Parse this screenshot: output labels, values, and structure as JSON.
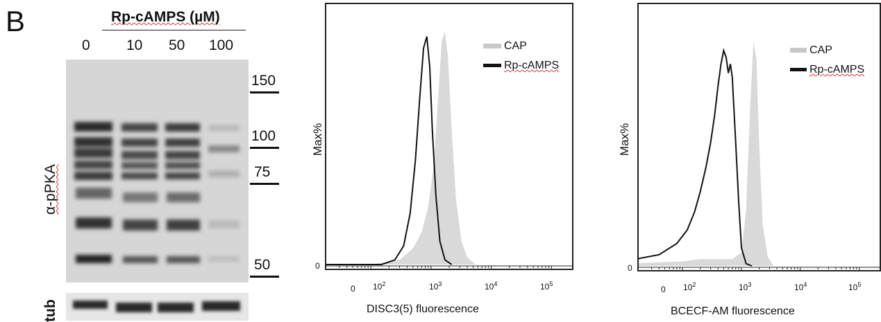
{
  "figure": {
    "panel_letter": "B",
    "treatment_title": "Rp-cAMPS (µM)",
    "concentrations": [
      "0",
      "10",
      "50",
      "100"
    ],
    "blot_label": "α-pPKA",
    "loading_label": "tub",
    "mw_markers": [
      "150",
      "100",
      "75",
      "50"
    ]
  },
  "chart_data": [
    {
      "type": "area",
      "title": "",
      "xlabel": "DISC3(5) fluorescence",
      "ylabel": "Max%",
      "x_scale": "log",
      "y_tick_labels": [
        "0"
      ],
      "x_tick_labels": [
        "0",
        "10^2",
        "10^3",
        "10^4",
        "10^5"
      ],
      "legend": {
        "placement": "top-right",
        "entries": [
          "CAP",
          "Rp-cAMPS"
        ]
      },
      "series": [
        {
          "name": "CAP",
          "style": "filled",
          "color": "#d9d9d9",
          "x": [
            10,
            100,
            300,
            500,
            700,
            900,
            1100,
            1300,
            1500,
            1700,
            1900,
            2200,
            2600,
            3200,
            4000,
            5500
          ],
          "y": [
            0,
            0,
            0.02,
            0.07,
            0.14,
            0.25,
            0.42,
            0.7,
            0.96,
            1.0,
            0.9,
            0.58,
            0.28,
            0.1,
            0.03,
            0
          ]
        },
        {
          "name": "Rp-cAMPS",
          "style": "line",
          "color": "#111111",
          "x": [
            10,
            150,
            250,
            350,
            450,
            550,
            650,
            750,
            850,
            950,
            1050,
            1200,
            1400,
            1700,
            2200
          ],
          "y": [
            0,
            0,
            0.02,
            0.08,
            0.22,
            0.45,
            0.72,
            0.93,
            0.98,
            0.85,
            0.58,
            0.3,
            0.1,
            0.02,
            0
          ]
        }
      ]
    },
    {
      "type": "area",
      "title": "",
      "xlabel": "BCECF-AM fluorescence",
      "ylabel": "Max%",
      "x_scale": "log",
      "y_tick_labels": [
        "0"
      ],
      "x_tick_labels": [
        "0",
        "10^2",
        "10^3",
        "10^4",
        "10^5"
      ],
      "legend": {
        "placement": "top-right",
        "entries": [
          "CAP",
          "Rp-cAMPS"
        ]
      },
      "series": [
        {
          "name": "CAP",
          "style": "filled",
          "color": "#d9d9d9",
          "x": [
            10,
            100,
            200,
            400,
            700,
            1000,
            1200,
            1400,
            1600,
            1800,
            2000,
            2300,
            2800,
            3500
          ],
          "y": [
            0.01,
            0.02,
            0.03,
            0.03,
            0.03,
            0.06,
            0.25,
            0.7,
            1.0,
            0.92,
            0.55,
            0.18,
            0.04,
            0
          ]
        },
        {
          "name": "Rp-cAMPS",
          "style": "line",
          "color": "#111111",
          "x": [
            10,
            40,
            80,
            120,
            160,
            200,
            250,
            300,
            350,
            400,
            450,
            500,
            550,
            600,
            650,
            700,
            800,
            900,
            1000,
            1200,
            1500
          ],
          "y": [
            0.02,
            0.05,
            0.1,
            0.16,
            0.24,
            0.33,
            0.44,
            0.55,
            0.67,
            0.8,
            0.9,
            0.96,
            0.93,
            0.86,
            0.9,
            0.84,
            0.55,
            0.28,
            0.08,
            0.01,
            0
          ]
        }
      ]
    }
  ]
}
